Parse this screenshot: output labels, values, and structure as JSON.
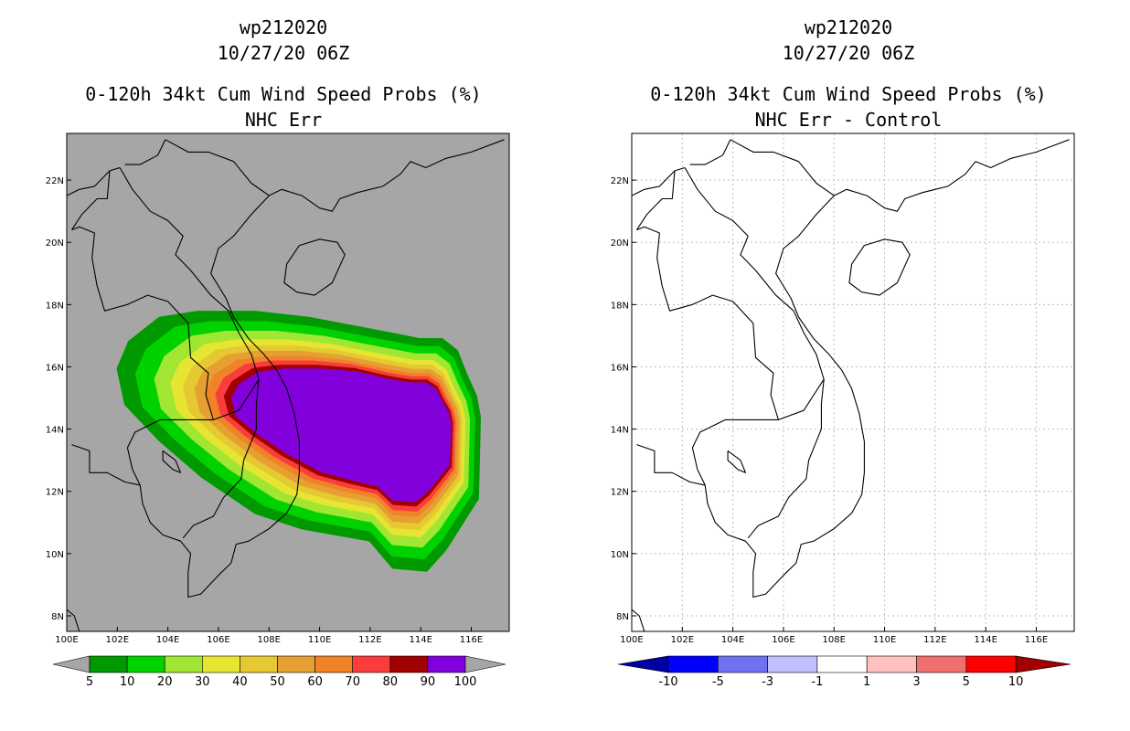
{
  "left_panel": {
    "titles": [
      "wp212020",
      "10/27/20 06Z",
      "0-120h 34kt Cum Wind Speed Probs (%)",
      "NHC Err"
    ],
    "lat_labels": [
      "22N",
      "20N",
      "18N",
      "16N",
      "14N",
      "12N",
      "10N",
      "8N"
    ],
    "lon_labels": [
      "100E",
      "102E",
      "104E",
      "106E",
      "108E",
      "110E",
      "112E",
      "114E",
      "116E"
    ],
    "colorbar": {
      "colors": [
        "#009a00",
        "#00d200",
        "#a0e632",
        "#e6e632",
        "#e6c832",
        "#e6a032",
        "#f08228",
        "#fa3c3c",
        "#a00000",
        "#8200dc"
      ],
      "labels": [
        "5",
        "10",
        "20",
        "30",
        "40",
        "50",
        "60",
        "70",
        "80",
        "90",
        "100"
      ],
      "end_color": "#a6a6a6"
    },
    "background_color": "#a6a6a6"
  },
  "right_panel": {
    "titles": [
      "wp212020",
      "10/27/20 06Z",
      "0-120h 34kt Cum Wind Speed Probs (%)",
      "NHC Err - Control"
    ],
    "lat_labels": [
      "22N",
      "20N",
      "18N",
      "16N",
      "14N",
      "12N",
      "10N",
      "8N"
    ],
    "lon_labels": [
      "100E",
      "102E",
      "104E",
      "106E",
      "108E",
      "110E",
      "112E",
      "114E",
      "116E"
    ],
    "colorbar": {
      "colors": [
        "#0000a0",
        "#0000ff",
        "#7070f0",
        "#c0c0ff",
        "#ffffff",
        "#ffc0c0",
        "#f07070",
        "#ff0000",
        "#a00000"
      ],
      "labels": [
        "-10",
        "-5",
        "-3",
        "-1",
        "1",
        "3",
        "5",
        "10"
      ]
    },
    "background_color": "#ffffff"
  },
  "map_extent": {
    "lon_range": [
      100,
      117.5
    ],
    "lat_range": [
      7.5,
      23.5
    ]
  },
  "storm": {
    "prob_levels": [
      5,
      10,
      20,
      30,
      40,
      50,
      60,
      70,
      80,
      90
    ],
    "shape": [
      [
        114.2,
        15.5
      ],
      [
        114.6,
        15.3
      ],
      [
        114.85,
        14.9
      ],
      [
        115.1,
        14.55
      ],
      [
        115.2,
        14.2
      ],
      [
        115.15,
        12.85
      ],
      [
        114.3,
        12.0
      ],
      [
        113.8,
        11.65
      ],
      [
        112.9,
        11.7
      ],
      [
        112.3,
        12.15
      ],
      [
        111.3,
        12.35
      ],
      [
        110.1,
        12.6
      ],
      [
        108.7,
        13.2
      ],
      [
        107.6,
        13.8
      ],
      [
        106.7,
        14.4
      ],
      [
        106.5,
        15.0
      ],
      [
        106.8,
        15.45
      ],
      [
        107.6,
        15.85
      ],
      [
        108.6,
        15.95
      ],
      [
        110.1,
        15.95
      ],
      [
        111.5,
        15.85
      ],
      [
        112.8,
        15.6
      ],
      [
        113.6,
        15.5
      ]
    ]
  }
}
